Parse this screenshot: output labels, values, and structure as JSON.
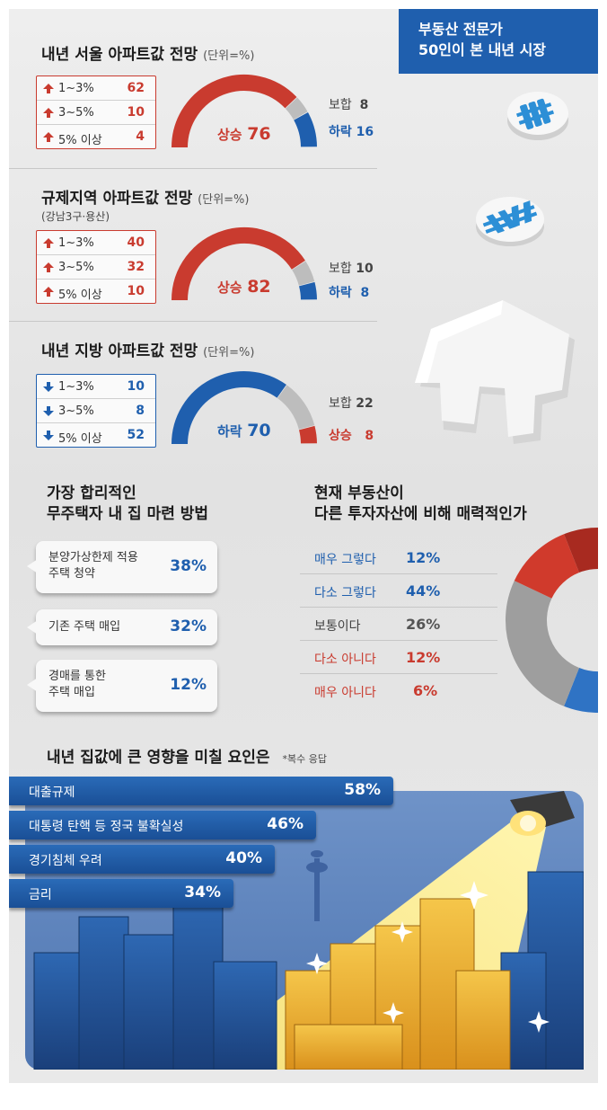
{
  "colors": {
    "up": "#c93b2f",
    "down": "#1f5fae",
    "flat": "#bdbdbd"
  },
  "badge": {
    "line1": "부동산 전문가",
    "line2": "50인이 본 내년 시장"
  },
  "icons": [
    "won-coin-icon",
    "won-coin-icon",
    "house-icon",
    "lamp-icon"
  ],
  "chart_data": [
    {
      "type": "gauge",
      "title": "내년 서울 아파트값 전망",
      "unit": "(단위=%)",
      "breakdown_direction": "up",
      "breakdown": [
        {
          "label": "1~3%",
          "value": 62
        },
        {
          "label": "3~5%",
          "value": 10
        },
        {
          "label": "5% 이상",
          "value": 4
        }
      ],
      "segments": [
        {
          "name": "상승",
          "value": 76,
          "color": "up"
        },
        {
          "name": "보합",
          "value": 8,
          "color": "flat"
        },
        {
          "name": "하락",
          "value": 16,
          "color": "down"
        }
      ]
    },
    {
      "type": "gauge",
      "title": "규제지역 아파트값 전망",
      "unit": "(단위=%)",
      "subtitle": "(강남3구·용산)",
      "breakdown_direction": "up",
      "breakdown": [
        {
          "label": "1~3%",
          "value": 40
        },
        {
          "label": "3~5%",
          "value": 32
        },
        {
          "label": "5% 이상",
          "value": 10
        }
      ],
      "segments": [
        {
          "name": "상승",
          "value": 82,
          "color": "up"
        },
        {
          "name": "보합",
          "value": 10,
          "color": "flat"
        },
        {
          "name": "하락",
          "value": 8,
          "color": "down"
        }
      ]
    },
    {
      "type": "gauge",
      "title": "내년 지방 아파트값 전망",
      "unit": "(단위=%)",
      "breakdown_direction": "down",
      "breakdown": [
        {
          "label": "1~3%",
          "value": 10
        },
        {
          "label": "3~5%",
          "value": 8
        },
        {
          "label": "5% 이상",
          "value": 52
        }
      ],
      "segments": [
        {
          "name": "하락",
          "value": 70,
          "color": "down"
        },
        {
          "name": "보합",
          "value": 22,
          "color": "flat"
        },
        {
          "name": "상승",
          "value": 8,
          "color": "up"
        }
      ]
    },
    {
      "type": "table",
      "title_line1": "가장 합리적인",
      "title_line2": "무주택자 내 집 마련 방법",
      "rows": [
        {
          "label_line1": "분양가상한제 적용",
          "label_line2": "주택 청약",
          "value": "38%"
        },
        {
          "label_line1": "기존 주택 매입",
          "label_line2": "",
          "value": "32%"
        },
        {
          "label_line1": "경매를 통한",
          "label_line2": "주택 매입",
          "value": "12%"
        }
      ]
    },
    {
      "type": "pie",
      "title_line1": "현재 부동산이",
      "title_line2": "다른 투자자산에 비해 매력적인가",
      "slices": [
        {
          "label": "매우 그렇다",
          "value": 12,
          "display": "12%",
          "color": "#1f5fae"
        },
        {
          "label": "다소 그렇다",
          "value": 44,
          "display": "44%",
          "color": "#2f73c4"
        },
        {
          "label": "보통이다",
          "value": 26,
          "display": "26%",
          "color": "#9e9e9e"
        },
        {
          "label": "다소 아니다",
          "value": 12,
          "display": "12%",
          "color": "#d03a2c"
        },
        {
          "label": "매우 아니다",
          "value": 6,
          "display": "6%",
          "color": "#a82a20"
        }
      ]
    },
    {
      "type": "bar",
      "title": "내년 집값에 큰 영향을 미칠 요인은",
      "note": "*복수 응답",
      "categories": [
        "대출규제",
        "대통령 탄핵 등 정국 불확실성",
        "경기침체 우려",
        "금리"
      ],
      "values": [
        58,
        46,
        40,
        34
      ],
      "display": [
        "58%",
        "46%",
        "40%",
        "34%"
      ]
    }
  ]
}
